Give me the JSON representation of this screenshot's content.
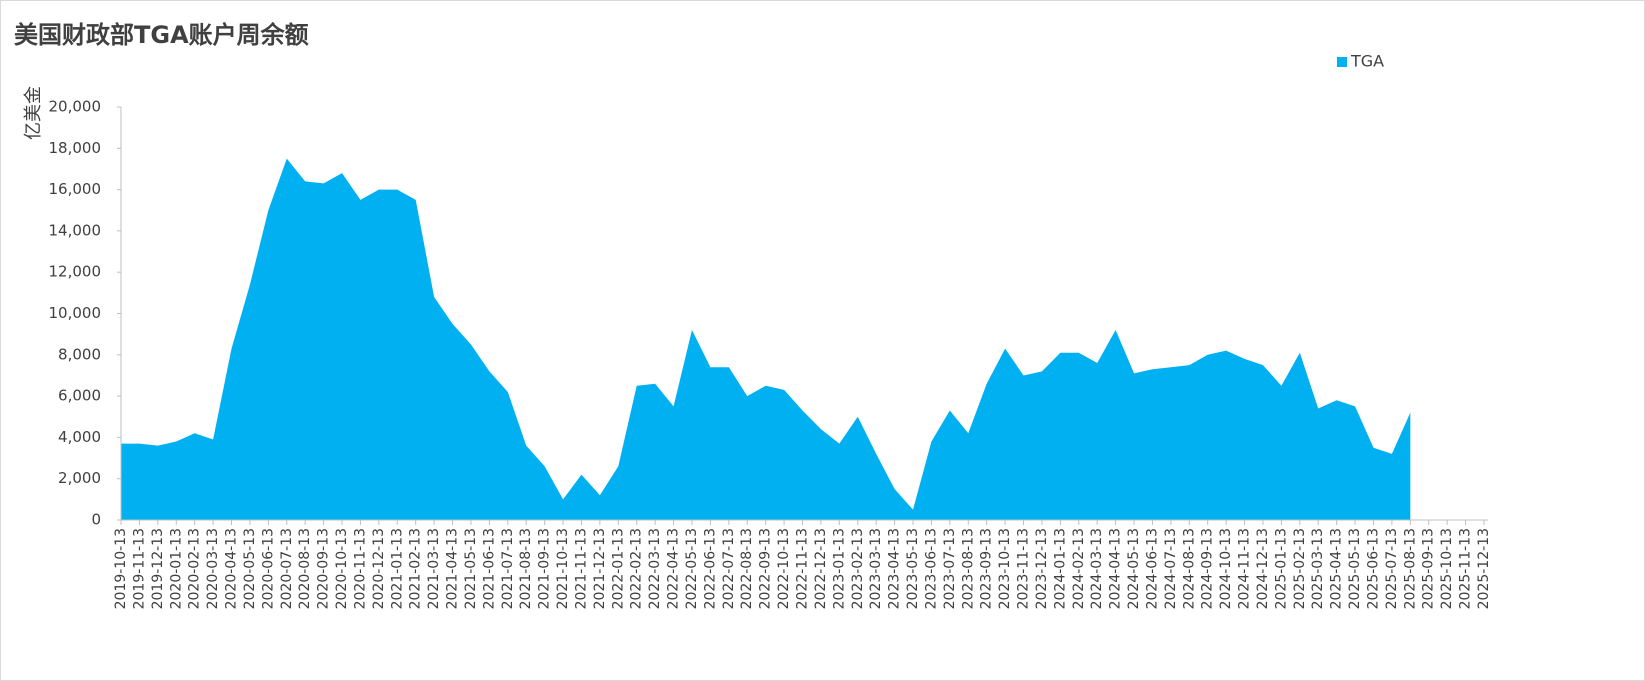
{
  "chart_data": {
    "type": "area",
    "title": "美国财政部TGA账户周余额",
    "ylabel": "亿美金",
    "categories": [
      "2019-10-13",
      "2019-11-13",
      "2019-12-13",
      "2020-01-13",
      "2020-02-13",
      "2020-03-13",
      "2020-04-13",
      "2020-05-13",
      "2020-06-13",
      "2020-07-13",
      "2020-08-13",
      "2020-09-13",
      "2020-10-13",
      "2020-11-13",
      "2020-12-13",
      "2021-01-13",
      "2021-02-13",
      "2021-03-13",
      "2021-04-13",
      "2021-05-13",
      "2021-06-13",
      "2021-07-13",
      "2021-08-13",
      "2021-09-13",
      "2021-10-13",
      "2021-11-13",
      "2021-12-13",
      "2022-01-13",
      "2022-02-13",
      "2022-03-13",
      "2022-04-13",
      "2022-05-13",
      "2022-06-13",
      "2022-07-13",
      "2022-08-13",
      "2022-09-13",
      "2022-10-13",
      "2022-11-13",
      "2022-12-13",
      "2023-01-13",
      "2023-02-13",
      "2023-03-13",
      "2023-04-13",
      "2023-05-13",
      "2023-06-13",
      "2023-07-13",
      "2023-08-13",
      "2023-09-13",
      "2023-10-13",
      "2023-11-13",
      "2023-12-13",
      "2024-01-13",
      "2024-02-13",
      "2024-03-13",
      "2024-04-13",
      "2024-05-13",
      "2024-06-13",
      "2024-07-13",
      "2024-08-13",
      "2024-09-13",
      "2024-10-13",
      "2024-11-13",
      "2024-12-13",
      "2025-01-13",
      "2025-02-13",
      "2025-03-13",
      "2025-04-13",
      "2025-05-13",
      "2025-06-13",
      "2025-07-13",
      "2025-08-13",
      "2025-09-13",
      "2025-10-13",
      "2025-11-13",
      "2025-12-13"
    ],
    "series": [
      {
        "name": "TGA",
        "color": "#00b0f0",
        "values": [
          3700,
          3700,
          3600,
          3800,
          4200,
          3900,
          8300,
          11400,
          15000,
          17500,
          16400,
          16300,
          16800,
          15500,
          16000,
          16000,
          15500,
          10800,
          9500,
          8500,
          7200,
          6200,
          3600,
          2600,
          1000,
          2200,
          1200,
          2600,
          6500,
          6600,
          5500,
          9200,
          7400,
          7400,
          6000,
          6500,
          6300,
          5300,
          4400,
          3700,
          5000,
          3200,
          1500,
          500,
          3800,
          5300,
          4200,
          6600,
          8300,
          7000,
          7200,
          8100,
          8100,
          7600,
          9200,
          7100,
          7300,
          7400,
          7500,
          8000,
          8200,
          7800,
          7500,
          6500,
          8100,
          5400,
          5800,
          5500,
          3500,
          3200,
          5200,
          null,
          null,
          null,
          null
        ]
      }
    ],
    "ylim": [
      0,
      20000
    ],
    "yticks": [
      0,
      {
        "value": 2000,
        "label": "2,000"
      },
      {
        "value": 4000,
        "label": "4,000"
      },
      {
        "value": 6000,
        "label": "6,000"
      },
      {
        "value": 8000,
        "label": "8,000"
      },
      {
        "value": 10000,
        "label": "10,000"
      },
      {
        "value": 12000,
        "label": "12,000"
      },
      {
        "value": 14000,
        "label": "14,000"
      },
      {
        "value": 16000,
        "label": "16,000"
      },
      {
        "value": 18000,
        "label": "18,000"
      },
      {
        "value": 20000,
        "label": "20,000"
      }
    ],
    "legend": "top-right",
    "grid": false
  }
}
